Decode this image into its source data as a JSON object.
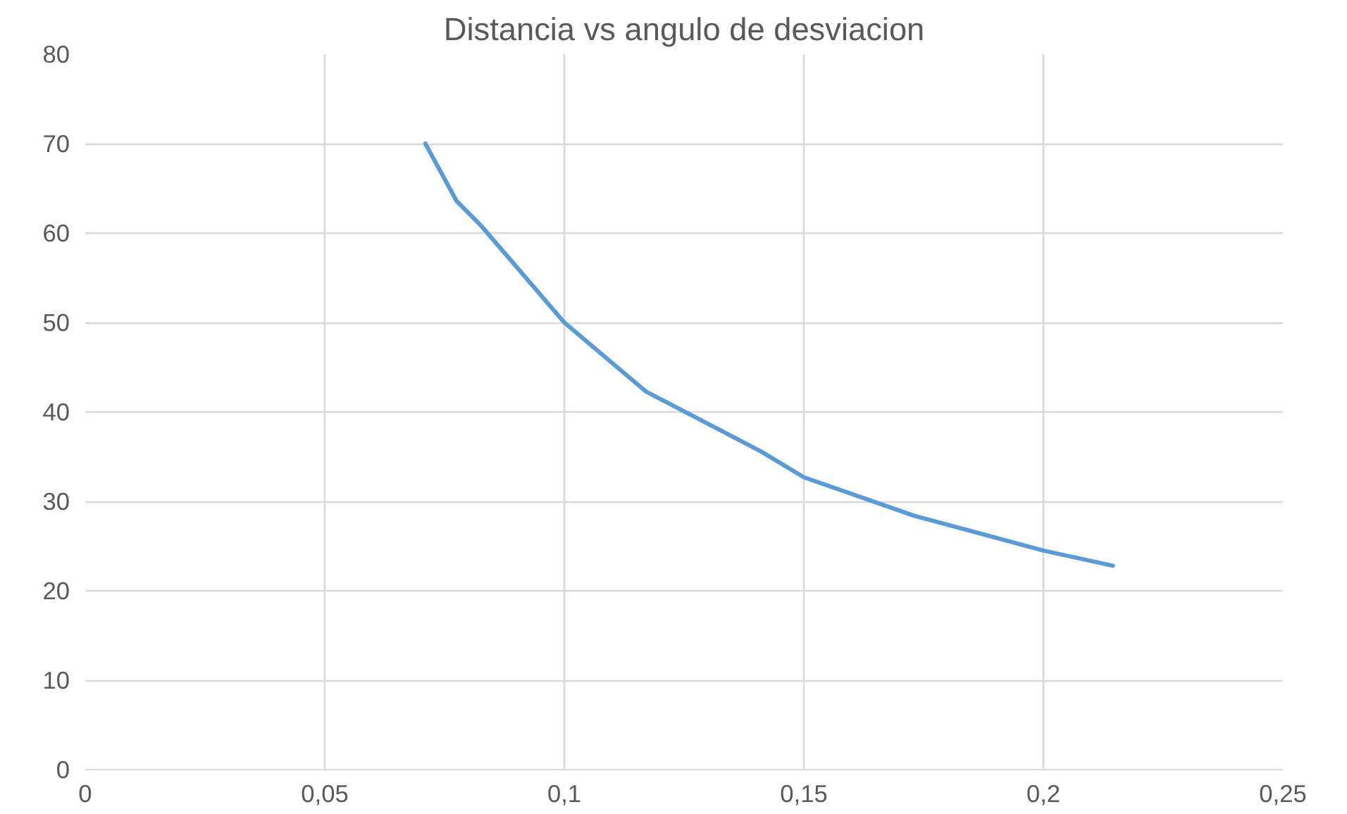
{
  "chart_data": {
    "type": "line",
    "title": "Distancia vs angulo de desviacion",
    "x": [
      0.071,
      0.0775,
      0.0825,
      0.1,
      0.117,
      0.141,
      0.15,
      0.173,
      0.2,
      0.2145
    ],
    "series": [
      {
        "color": "#5b9bd5",
        "values": [
          70,
          63.6,
          60.9,
          50,
          42.3,
          35.6,
          32.7,
          28.4,
          24.5,
          22.8
        ]
      }
    ],
    "xlim": [
      0,
      0.25
    ],
    "xticks": [
      0,
      {
        "value": 0.05,
        "label": "0,05"
      },
      {
        "value": 0.1,
        "label": "0,1"
      },
      {
        "value": 0.15,
        "label": "0,15"
      },
      {
        "value": 0.2,
        "label": "0,2"
      },
      {
        "value": 0.25,
        "label": "0,25"
      }
    ],
    "ylim": [
      0,
      80
    ],
    "yticks": [
      0,
      10,
      20,
      30,
      40,
      50,
      60,
      70,
      80
    ],
    "grid": true,
    "marker": "none",
    "line_style": "solid"
  }
}
